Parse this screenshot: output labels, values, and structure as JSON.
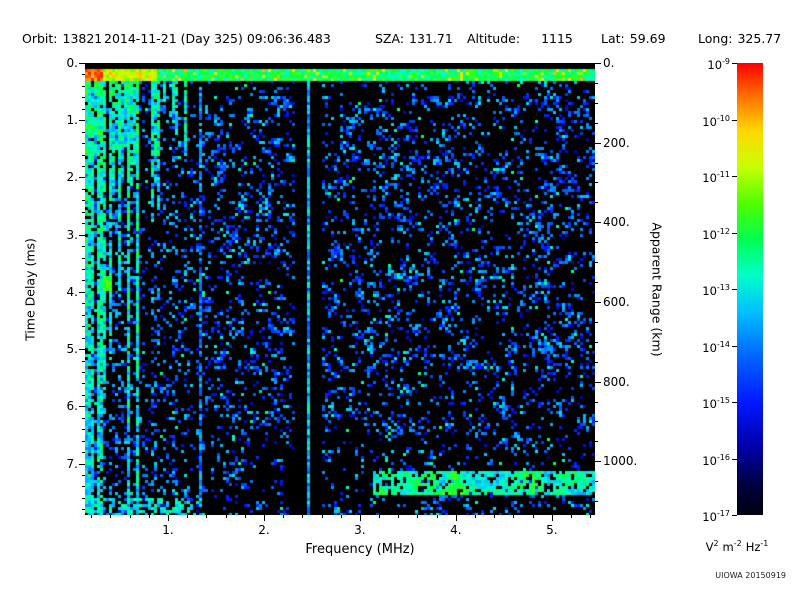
{
  "watermark": "UIOWA 20150919",
  "header": {
    "fields": [
      {
        "label": "Orbit:",
        "value": "13821"
      },
      {
        "label": "",
        "value": "2014-11-21 (Day 325) 09:06:36.483"
      },
      {
        "label": "SZA:",
        "value": "131.71"
      },
      {
        "label": "Altitude:",
        "value": "1115"
      },
      {
        "label": "Lat:",
        "value": "59.69"
      },
      {
        "label": "Long:",
        "value": "325.77"
      }
    ]
  },
  "chart_data": {
    "type": "heatmap",
    "description": "Radar sounder ionogram: received spectral density versus frequency and time delay",
    "xlabel": "Frequency (MHz)",
    "ylabel": "Time Delay (ms)",
    "y2label": "Apparent Range (km)",
    "x_range_mhz": [
      0.135,
      5.45
    ],
    "y_range_ms": [
      0.0,
      7.9
    ],
    "y2_range_km": [
      0,
      1135
    ],
    "x_ticks": [
      {
        "value": 1,
        "label": "1."
      },
      {
        "value": 2,
        "label": "2."
      },
      {
        "value": 3,
        "label": "3."
      },
      {
        "value": 4,
        "label": "4."
      },
      {
        "value": 5,
        "label": "5."
      }
    ],
    "x_minor_step": 0.2,
    "y_ticks": [
      {
        "value": 0,
        "label": "0."
      },
      {
        "value": 1,
        "label": "1."
      },
      {
        "value": 2,
        "label": "2."
      },
      {
        "value": 3,
        "label": "3."
      },
      {
        "value": 4,
        "label": "4."
      },
      {
        "value": 5,
        "label": "5."
      },
      {
        "value": 6,
        "label": "6."
      },
      {
        "value": 7,
        "label": "7."
      }
    ],
    "y_minor_step": 0.2,
    "y2_ticks": [
      {
        "value": 0,
        "label": "0."
      },
      {
        "value": 200,
        "label": "200."
      },
      {
        "value": 400,
        "label": "400."
      },
      {
        "value": 600,
        "label": "600."
      },
      {
        "value": 800,
        "label": "800."
      },
      {
        "value": 1000,
        "label": "1000."
      }
    ],
    "y2_minor_step": 50,
    "background_color": "#000000",
    "colorbar": {
      "scale": "log10",
      "tick_exponents": [
        -9,
        -10,
        -11,
        -12,
        -13,
        -14,
        -15,
        -16,
        -17
      ],
      "units_parts": [
        {
          "base": "V",
          "exp": "2"
        },
        {
          "base": "m",
          "exp": "-2"
        },
        {
          "base": "Hz",
          "exp": "-1"
        }
      ],
      "colormap_stops": [
        {
          "t": 0.0,
          "color": "#000012"
        },
        {
          "t": 0.06,
          "color": "#000038"
        },
        {
          "t": 0.15,
          "color": "#0000A8"
        },
        {
          "t": 0.25,
          "color": "#0018FF"
        },
        {
          "t": 0.35,
          "color": "#0064FF"
        },
        {
          "t": 0.45,
          "color": "#00C0FF"
        },
        {
          "t": 0.53,
          "color": "#00FFC8"
        },
        {
          "t": 0.61,
          "color": "#00FF50"
        },
        {
          "t": 0.69,
          "color": "#50FF00"
        },
        {
          "t": 0.77,
          "color": "#C8FF00"
        },
        {
          "t": 0.85,
          "color": "#FFD800"
        },
        {
          "t": 0.92,
          "color": "#FF7800"
        },
        {
          "t": 1.0,
          "color": "#FF0000"
        }
      ]
    },
    "features": [
      {
        "name": "surface-echo-band",
        "freq_mhz": [
          0.135,
          5.45
        ],
        "delay_ms": [
          0.1,
          0.31
        ],
        "power_log10": [
          -13,
          -9
        ],
        "note": "bright horizontal echo just below zero delay, red-orange at lowest frequencies, green-cyan elsewhere"
      },
      {
        "name": "plasma-stripes",
        "freq_mhz": [
          0.135,
          1.38
        ],
        "delay_ms": [
          0.1,
          7.9
        ],
        "power_log10": [
          -13,
          -12
        ],
        "note": "vertical green electron plasma oscillation stripes of varying length, some full height"
      },
      {
        "name": "diffuse-scatter",
        "freq_mhz": [
          1.38,
          5.45
        ],
        "delay_ms": [
          0.4,
          7.9
        ],
        "power_log10": [
          -16.5,
          -14.5
        ],
        "note": "speckled blue background scatter in blobby clusters"
      },
      {
        "name": "interference-notch",
        "freq_mhz": [
          2.33,
          2.62
        ],
        "delay_ms": [
          0,
          7.9
        ],
        "note": "black vertical band"
      },
      {
        "name": "interference-line",
        "freq_mhz": [
          2.457,
          2.493
        ],
        "delay_ms": [
          0,
          7.9
        ],
        "power_log10": [
          -14.5,
          -13.5
        ],
        "note": "narrow cyan vertical line inside the notch"
      },
      {
        "name": "vertical-line",
        "freq_mhz": [
          1.318,
          1.352
        ],
        "delay_ms": [
          0,
          7.9
        ],
        "power_log10": [
          -15,
          -14
        ],
        "note": "faint cyan vertical line"
      },
      {
        "name": "ground-streak",
        "freq_mhz": [
          3.15,
          5.45
        ],
        "delay_ms": [
          7.12,
          7.55
        ],
        "power_log10": [
          -14,
          -13
        ],
        "note": "cyan-green horizontal streak near bottom right"
      },
      {
        "name": "bottom-left-patch",
        "freq_mhz": [
          0.135,
          1.35
        ],
        "delay_ms": [
          7.62,
          7.9
        ],
        "power_log10": [
          -14,
          -13
        ],
        "note": "green-cyan patch at bottom left"
      },
      {
        "name": "bright-blob",
        "freq_mhz": [
          0.31,
          0.41
        ],
        "delay_ms": [
          3.73,
          3.97
        ],
        "power_log10": [
          -12,
          -11.5
        ],
        "note": "bright green dot on a low-frequency stripe"
      }
    ]
  }
}
